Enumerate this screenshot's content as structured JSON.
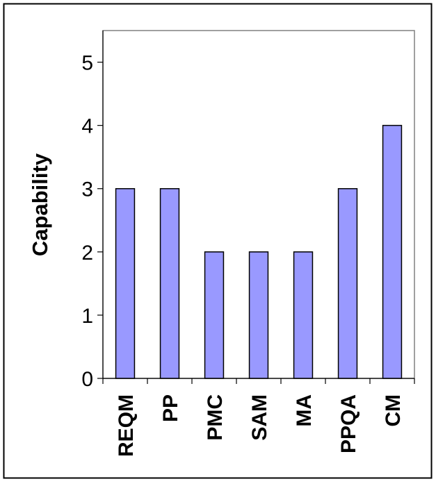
{
  "chart_data": {
    "type": "bar",
    "title": "",
    "xlabel": "",
    "ylabel": "Capability",
    "categories": [
      "REQM",
      "PP",
      "PMC",
      "SAM",
      "MA",
      "PPQA",
      "CM"
    ],
    "values": [
      3,
      3,
      2,
      2,
      2,
      3,
      4
    ],
    "ylim": [
      0,
      5.5
    ],
    "yticks": [
      "0",
      "1",
      "2",
      "3",
      "4",
      "5"
    ],
    "grid": false,
    "legend": "none",
    "bar_color": "#9999ff",
    "bar_stroke": "#000000",
    "plot_border_color": "#808080"
  }
}
